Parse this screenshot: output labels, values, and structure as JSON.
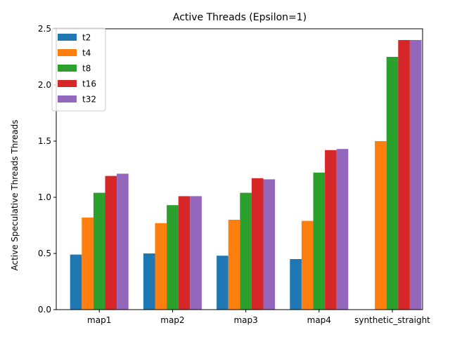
{
  "chart_data": {
    "type": "bar",
    "title": "Active Threads (Epsilon=1)",
    "xlabel": "",
    "ylabel": "Active Speculative Threads Threads",
    "categories": [
      "map1",
      "map2",
      "map3",
      "map4",
      "synthetic_straight"
    ],
    "ylim": [
      0,
      2.5
    ],
    "yticks": [
      0.0,
      0.5,
      1.0,
      1.5,
      2.0,
      2.5
    ],
    "ytick_labels": [
      "0.0",
      "0.5",
      "1.0",
      "1.5",
      "2.0",
      "2.5"
    ],
    "grid": false,
    "legend_position": "top-left",
    "series": [
      {
        "name": "t2",
        "color": "#1f77b4",
        "values": [
          0.49,
          0.5,
          0.48,
          0.45,
          0.0
        ]
      },
      {
        "name": "t4",
        "color": "#ff7f0e",
        "values": [
          0.82,
          0.77,
          0.8,
          0.79,
          1.5
        ]
      },
      {
        "name": "t8",
        "color": "#2ca02c",
        "values": [
          1.04,
          0.93,
          1.04,
          1.22,
          2.25
        ]
      },
      {
        "name": "t16",
        "color": "#d62728",
        "values": [
          1.19,
          1.01,
          1.17,
          1.42,
          2.4
        ]
      },
      {
        "name": "t32",
        "color": "#9467bd",
        "values": [
          1.21,
          1.01,
          1.16,
          1.43,
          2.4
        ]
      }
    ]
  }
}
